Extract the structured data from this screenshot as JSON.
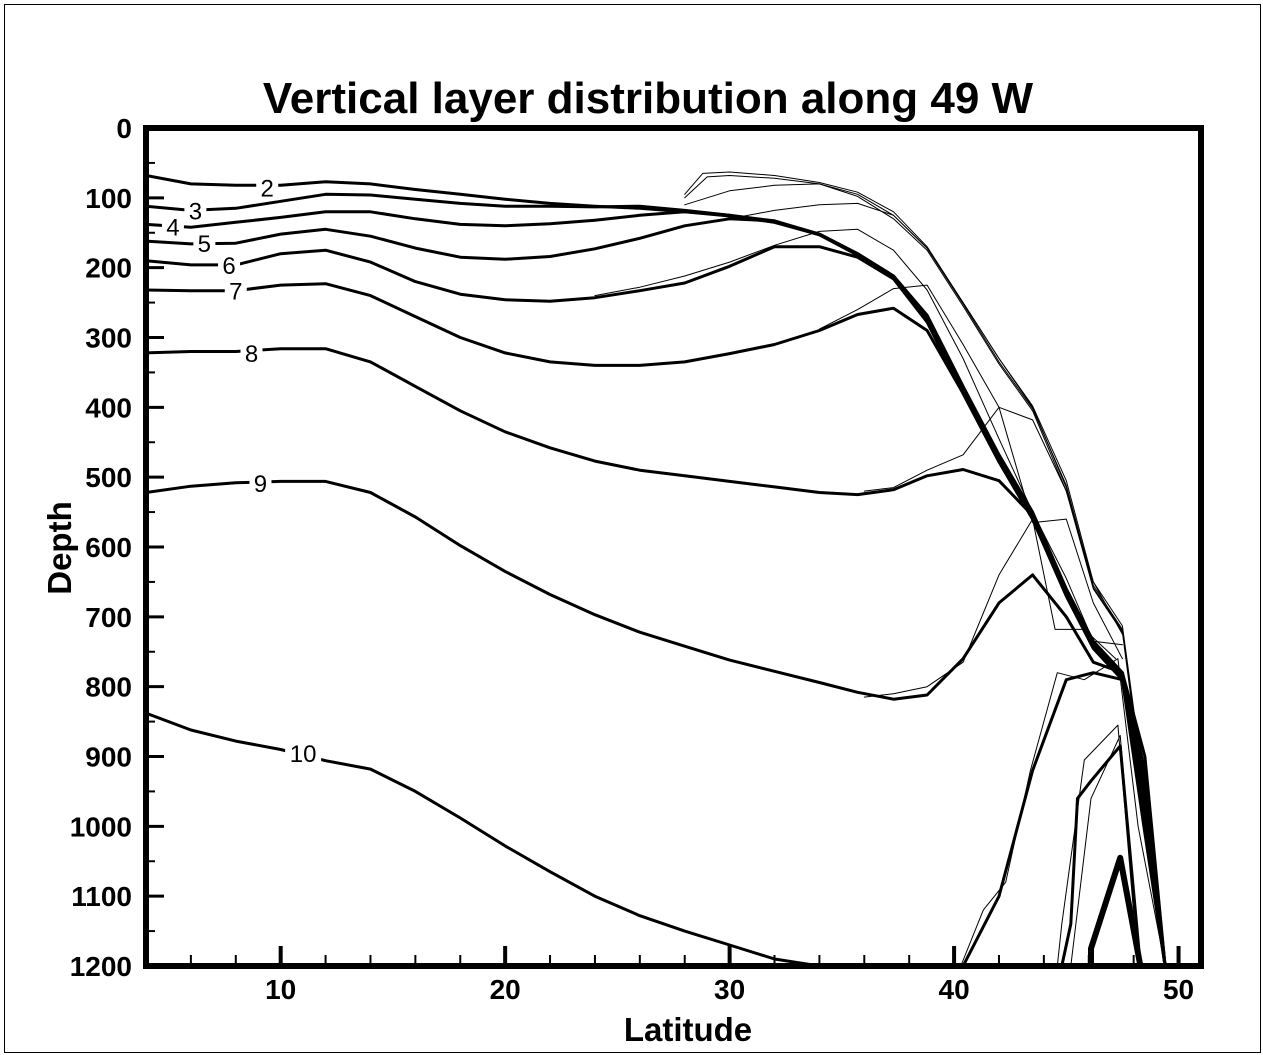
{
  "chart_data": {
    "type": "line",
    "title": "Vertical layer distribution along 49 W",
    "xlabel": "Latitude",
    "ylabel": "Depth",
    "xlim": [
      4,
      51
    ],
    "ylim": [
      1200,
      0
    ],
    "y_inverted": true,
    "grid": false,
    "x_ticks": [
      10,
      20,
      30,
      40,
      50
    ],
    "y_ticks": [
      0,
      100,
      200,
      300,
      400,
      500,
      600,
      700,
      800,
      900,
      1000,
      1100,
      1200
    ],
    "x_tick_labels": [
      "10",
      "20",
      "30",
      "40",
      "50"
    ],
    "y_tick_labels": [
      "0",
      "100",
      "200",
      "300",
      "400",
      "500",
      "600",
      "700",
      "800",
      "900",
      "1000",
      "1100",
      "1200"
    ],
    "series": [
      {
        "label": "2",
        "label_at": [
          9.4,
          85
        ],
        "stroke": 3,
        "x": [
          4,
          6,
          8,
          10,
          12,
          14,
          16,
          18,
          20,
          22,
          24,
          26,
          28,
          30,
          32,
          34,
          35.7,
          37.3,
          38.8,
          40.4,
          42,
          43.5,
          45,
          46.2,
          47.5,
          48.5,
          49.4
        ],
        "y": [
          68,
          80,
          82,
          82,
          77,
          80,
          88,
          95,
          102,
          108,
          112,
          115,
          120,
          125,
          133,
          152,
          180,
          212,
          268,
          370,
          468,
          550,
          660,
          735,
          780,
          900,
          1200
        ]
      },
      {
        "label": "3",
        "label_at": [
          6.2,
          118
        ],
        "stroke": 3,
        "x": [
          4,
          6,
          8,
          10,
          12,
          14,
          16,
          18,
          20,
          22,
          24,
          26,
          28,
          30,
          32,
          34,
          35.7,
          37.3,
          38.8,
          40.4,
          42,
          43.5,
          45,
          46.2,
          47.5,
          48.5,
          49.4
        ],
        "y": [
          112,
          118,
          115,
          105,
          95,
          96,
          102,
          108,
          112,
          112,
          113,
          112,
          118,
          125,
          135,
          152,
          180,
          212,
          270,
          372,
          470,
          552,
          662,
          737,
          782,
          920,
          1200
        ]
      },
      {
        "label": "4",
        "label_at": [
          5.2,
          141
        ],
        "stroke": 3,
        "x": [
          4,
          6,
          8,
          10,
          12,
          14,
          16,
          18,
          20,
          22,
          24,
          26,
          28,
          30,
          32,
          34,
          35.7,
          37.3,
          38.8,
          40.4,
          42,
          43.5,
          45,
          46.2,
          47.5,
          48.5,
          49.4
        ],
        "y": [
          138,
          142,
          135,
          128,
          120,
          120,
          130,
          138,
          140,
          137,
          132,
          125,
          120,
          126,
          135,
          153,
          181,
          213,
          272,
          375,
          472,
          555,
          665,
          740,
          785,
          940,
          1200
        ]
      },
      {
        "label": "5",
        "label_at": [
          6.6,
          165
        ],
        "stroke": 3,
        "x": [
          4,
          6,
          8,
          10,
          12,
          14,
          16,
          18,
          20,
          22,
          24,
          26,
          28,
          30,
          32,
          34,
          35.7,
          37.3,
          38.8,
          40.4,
          42,
          43.5,
          45,
          46.2,
          47.5,
          48.5,
          49.4
        ],
        "y": [
          162,
          166,
          165,
          152,
          145,
          155,
          172,
          185,
          188,
          184,
          173,
          158,
          140,
          130,
          133,
          153,
          182,
          214,
          275,
          378,
          475,
          558,
          668,
          742,
          788,
          960,
          1200
        ]
      },
      {
        "label": "6",
        "label_at": [
          7.7,
          196
        ],
        "stroke": 3,
        "x": [
          4,
          6,
          8,
          10,
          12,
          14,
          16,
          18,
          20,
          22,
          24,
          26,
          28,
          30,
          32,
          34,
          35.7,
          37.3,
          38.8,
          40.4,
          42,
          43.5,
          45,
          46.2,
          47.5,
          48.5,
          49.4
        ],
        "y": [
          190,
          196,
          196,
          180,
          175,
          192,
          220,
          238,
          246,
          248,
          243,
          233,
          222,
          198,
          170,
          170,
          185,
          216,
          278,
          380,
          478,
          560,
          670,
          745,
          790,
          980,
          1200
        ]
      },
      {
        "label": "7",
        "label_at": [
          8.0,
          233
        ],
        "stroke": 3,
        "x": [
          4,
          6,
          8,
          10,
          12,
          14,
          16,
          18,
          20,
          22,
          24,
          26,
          28,
          30,
          32,
          34,
          35.7,
          37.3,
          38.8,
          40.4,
          42,
          43.5,
          45,
          46.2,
          47.5,
          48.5,
          49.4
        ],
        "y": [
          232,
          233,
          233,
          225,
          223,
          240,
          270,
          300,
          322,
          335,
          340,
          340,
          335,
          323,
          310,
          290,
          267,
          258,
          290,
          380,
          478,
          560,
          670,
          745,
          790,
          985,
          1200
        ]
      },
      {
        "label": "8",
        "label_at": [
          8.7,
          322
        ],
        "stroke": 3,
        "x": [
          4,
          6,
          8,
          10,
          12,
          14,
          16,
          18,
          20,
          22,
          24,
          26,
          28,
          30,
          32,
          34,
          35.7,
          37.3,
          38.8,
          40.4,
          42,
          43.5,
          45,
          46.2,
          47.5,
          48.5,
          49.4
        ],
        "y": [
          322,
          320,
          320,
          316,
          316,
          335,
          370,
          405,
          435,
          458,
          477,
          490,
          498,
          506,
          514,
          522,
          525,
          518,
          498,
          489,
          505,
          555,
          665,
          742,
          788,
          990,
          1200
        ]
      },
      {
        "label": "9",
        "label_at": [
          9.1,
          508
        ],
        "stroke": 3,
        "x": [
          4,
          6,
          8,
          10,
          12,
          14,
          16,
          18,
          20,
          22,
          24,
          26,
          28,
          30,
          32,
          34,
          35.7,
          37.3,
          38.8,
          40.4,
          42,
          43.5,
          45,
          46.2,
          47.5,
          48.5,
          49.4
        ],
        "y": [
          522,
          513,
          508,
          506,
          506,
          522,
          557,
          598,
          635,
          668,
          697,
          722,
          742,
          762,
          778,
          794,
          808,
          818,
          812,
          760,
          680,
          640,
          700,
          765,
          780,
          1000,
          1200
        ]
      },
      {
        "label": "10",
        "label_at": [
          11.0,
          895
        ],
        "stroke": 3,
        "x": [
          4,
          6,
          8,
          10,
          12,
          14,
          16,
          18,
          20,
          22,
          24,
          26,
          28,
          30,
          32,
          34,
          35.7,
          37.3,
          38.8,
          40.4,
          42,
          43.5,
          45,
          46.2,
          47.5,
          48.5,
          49.4
        ],
        "y": [
          838,
          862,
          878,
          890,
          906,
          918,
          950,
          988,
          1028,
          1065,
          1100,
          1128,
          1150,
          1170,
          1190,
          1200,
          1200,
          1200,
          1200,
          1200,
          1100,
          920,
          790,
          780,
          790,
          1010,
          1200
        ]
      },
      {
        "label": "",
        "stroke": 1,
        "x": [
          28,
          28.8,
          30,
          32,
          34,
          35.7,
          37.3,
          38.8,
          40.4,
          42,
          43.5,
          45,
          46.2,
          47.5,
          48.5
        ],
        "y": [
          95,
          65,
          63,
          68,
          78,
          92,
          120,
          170,
          250,
          330,
          398,
          505,
          650,
          713,
          950
        ]
      },
      {
        "label": "",
        "stroke": 1,
        "x": [
          28,
          29,
          30,
          32,
          34,
          35.7,
          37.3,
          38.8,
          40.4,
          42,
          43.5,
          45,
          46.2,
          47.5,
          48.5
        ],
        "y": [
          100,
          70,
          68,
          72,
          80,
          95,
          125,
          172,
          252,
          335,
          402,
          512,
          655,
          718,
          960
        ]
      },
      {
        "label": "",
        "stroke": 1,
        "x": [
          28,
          30,
          32,
          34,
          35.7,
          37.3,
          38.8,
          40.4,
          42,
          43.5,
          45,
          46.2,
          47.5,
          48.5
        ],
        "y": [
          110,
          90,
          82,
          80,
          98,
          130,
          175,
          255,
          338,
          405,
          520,
          660,
          722,
          970
        ]
      },
      {
        "label": "",
        "stroke": 1,
        "x": [
          30,
          32,
          34,
          35.7,
          37.3,
          38.8,
          40.4,
          42,
          43.5,
          45,
          46.2,
          47.5
        ],
        "y": [
          130,
          118,
          110,
          108,
          125,
          172,
          250,
          330,
          400,
          515,
          658,
          720
        ]
      },
      {
        "label": "",
        "stroke": 1,
        "x": [
          24,
          26,
          28,
          30,
          32,
          34,
          35.7,
          37.3,
          38.8,
          40.4,
          42,
          43.5,
          45,
          46.2,
          47.5
        ],
        "y": [
          240,
          228,
          212,
          192,
          168,
          148,
          145,
          175,
          232,
          330,
          445,
          550,
          645,
          735,
          740
        ]
      },
      {
        "label": "",
        "stroke": 1,
        "x": [
          34,
          35.7,
          37.3,
          38.8,
          40.4,
          42,
          43.5,
          45,
          46.2,
          47.5
        ],
        "y": [
          288,
          260,
          230,
          225,
          310,
          400,
          418,
          520,
          650,
          725
        ]
      },
      {
        "label": "",
        "stroke": 1,
        "x": [
          36,
          37.3,
          38.8,
          40.4,
          42,
          43.5,
          45,
          46.2,
          47.5
        ],
        "y": [
          520,
          515,
          490,
          468,
          400,
          565,
          560,
          680,
          760
        ]
      },
      {
        "label": "",
        "stroke": 1,
        "x": [
          36,
          37.3,
          38.8,
          40.4,
          42,
          43.5,
          44.5,
          45.8,
          47.2
        ],
        "y": [
          815,
          810,
          800,
          765,
          640,
          560,
          718,
          718,
          760
        ]
      },
      {
        "label": "",
        "stroke": 1,
        "x": [
          40.3,
          41.3,
          42.3,
          43.4,
          44.6,
          45.8,
          47.3,
          48.2,
          49.4
        ],
        "y": [
          1200,
          1120,
          1080,
          920,
          780,
          790,
          760,
          1000,
          1200
        ]
      },
      {
        "label": "",
        "stroke": 1,
        "x": [
          44.6,
          44.8,
          45.8,
          47.3,
          48.2
        ],
        "y": [
          1200,
          1140,
          905,
          855,
          1200
        ]
      },
      {
        "label": "",
        "stroke": 1,
        "x": [
          45.2,
          46.1,
          47.4,
          48.3
        ],
        "y": [
          1200,
          960,
          870,
          1200
        ]
      },
      {
        "label": "",
        "stroke": 3,
        "x": [
          44.8,
          45.2,
          45.5,
          46.1,
          47.4,
          48.3
        ],
        "y": [
          1200,
          1140,
          960,
          935,
          885,
          1200
        ]
      },
      {
        "label": "",
        "stroke": 6,
        "x": [
          46.1,
          46.1,
          47.4,
          48.3
        ],
        "y": [
          1200,
          1175,
          1045,
          1200
        ]
      }
    ]
  }
}
